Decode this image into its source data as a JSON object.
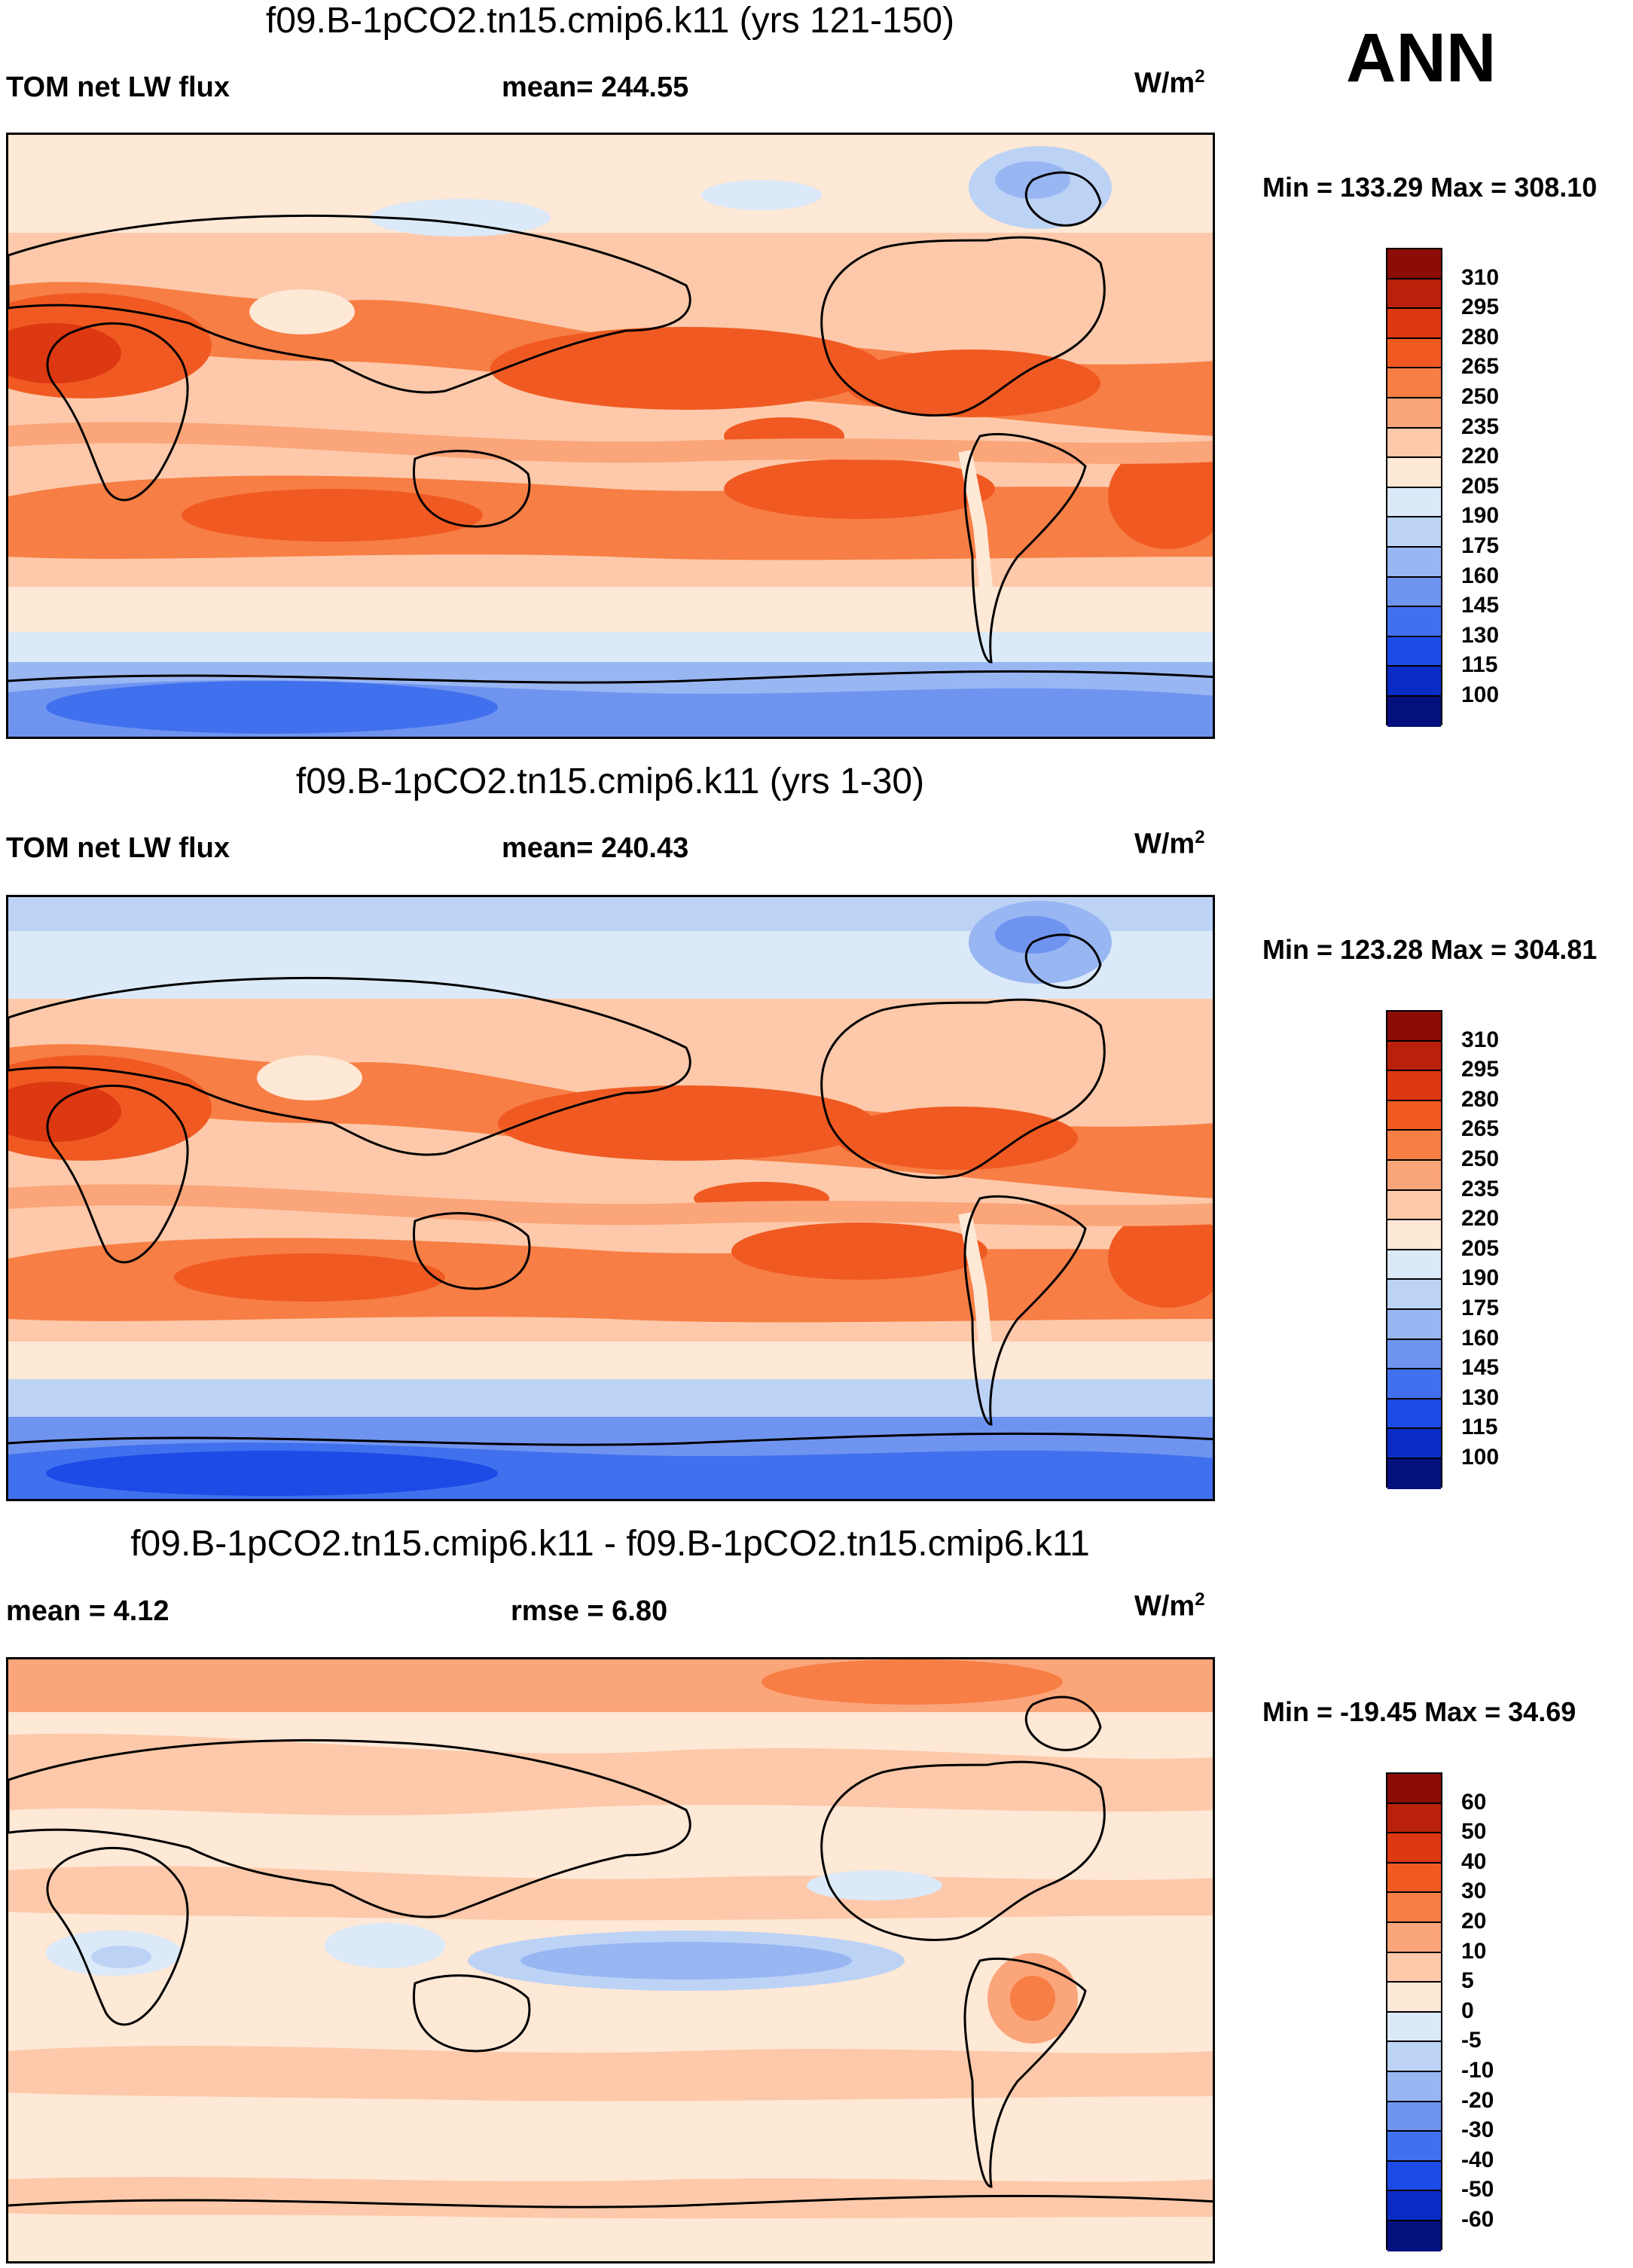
{
  "season": "ANN",
  "panels": [
    {
      "title": "f09.B-1pCO2.tn15.cmip6.k11 (yrs 121-150)",
      "left_label": "TOM net LW flux",
      "center_label": "mean= 244.55",
      "unit": "W/m",
      "unit_exp": "2",
      "minmax": "Min = 133.29 Max = 308.10",
      "field": "base",
      "colorbar": {
        "labels": [
          "310",
          "295",
          "280",
          "265",
          "250",
          "235",
          "220",
          "205",
          "190",
          "175",
          "160",
          "145",
          "130",
          "115",
          "100"
        ],
        "colors": [
          "#8b0d06",
          "#b9210b",
          "#dc3812",
          "#f05a22",
          "#f77e45",
          "#fba57a",
          "#fdc9aa",
          "#fee8d6",
          "#dbe9f9",
          "#bdd3f6",
          "#98b6f2",
          "#6f94f0",
          "#4170ee",
          "#1d4be6",
          "#0a2cc4",
          "#04107e"
        ]
      }
    },
    {
      "title": "f09.B-1pCO2.tn15.cmip6.k11 (yrs 1-30)",
      "left_label": "TOM net LW flux",
      "center_label": "mean= 240.43",
      "unit": "W/m",
      "unit_exp": "2",
      "minmax": "Min = 123.28 Max = 304.81",
      "field": "base2",
      "colorbar": {
        "labels": [
          "310",
          "295",
          "280",
          "265",
          "250",
          "235",
          "220",
          "205",
          "190",
          "175",
          "160",
          "145",
          "130",
          "115",
          "100"
        ],
        "colors": [
          "#8b0d06",
          "#b9210b",
          "#dc3812",
          "#f05a22",
          "#f77e45",
          "#fba57a",
          "#fdc9aa",
          "#fee8d6",
          "#dbe9f9",
          "#bdd3f6",
          "#98b6f2",
          "#6f94f0",
          "#4170ee",
          "#1d4be6",
          "#0a2cc4",
          "#04107e"
        ]
      }
    },
    {
      "title": "f09.B-1pCO2.tn15.cmip6.k11 - f09.B-1pCO2.tn15.cmip6.k11",
      "left_label": "mean =   4.12",
      "center_label": "rmse =   6.80",
      "unit": "W/m",
      "unit_exp": "2",
      "minmax": "Min = -19.45 Max =  34.69",
      "field": "diff",
      "colorbar": {
        "labels": [
          "60",
          "50",
          "40",
          "30",
          "20",
          "10",
          "5",
          "0",
          "-5",
          "-10",
          "-20",
          "-30",
          "-40",
          "-50",
          "-60"
        ],
        "colors": [
          "#8b0d06",
          "#b9210b",
          "#dc3812",
          "#f05a22",
          "#f77e45",
          "#fba57a",
          "#fdc9aa",
          "#fee8d6",
          "#dbe9f9",
          "#bdd3f6",
          "#98b6f2",
          "#6f94f0",
          "#4170ee",
          "#1d4be6",
          "#0a2cc4",
          "#04107e"
        ]
      }
    }
  ]
}
